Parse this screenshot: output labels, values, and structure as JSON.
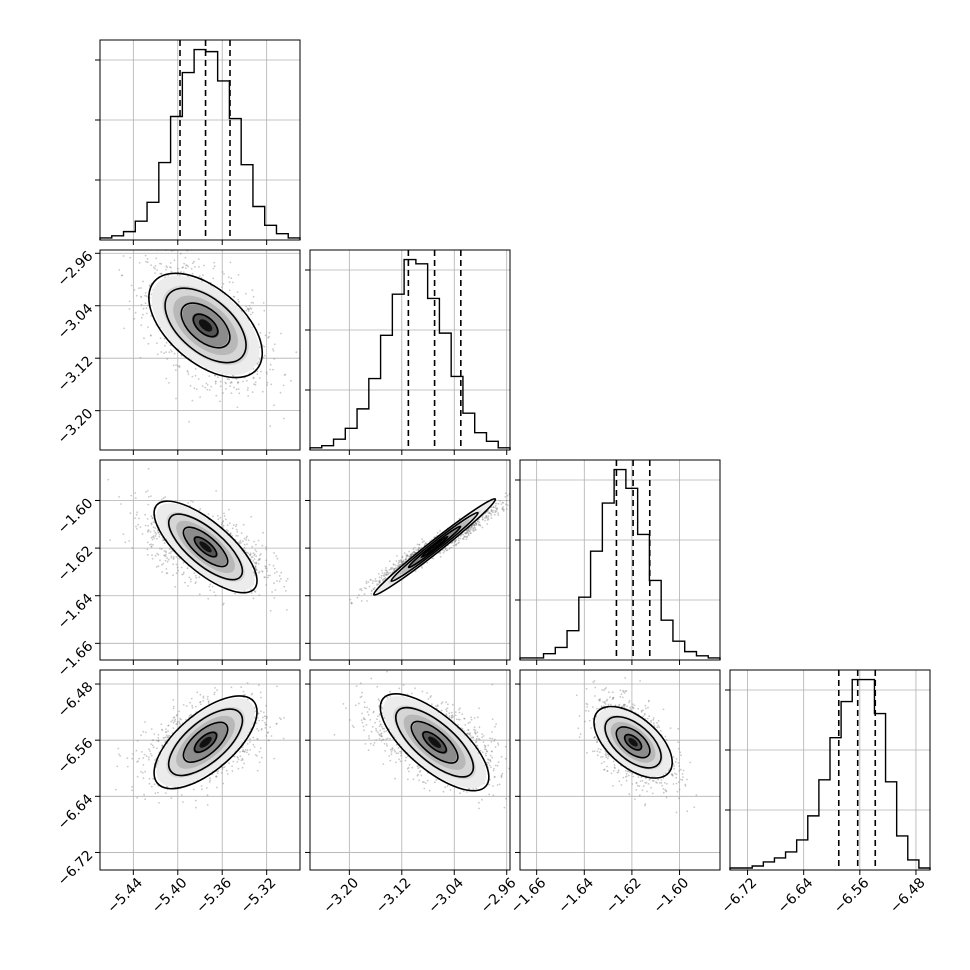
{
  "chart_data": {
    "type": "corner",
    "grid": true,
    "parameters": [
      {
        "ticks": [
          -5.44,
          -5.4,
          -5.36,
          -5.32
        ],
        "tick_labels": [
          "−5.44",
          "−5.40",
          "−5.36",
          "−5.32"
        ],
        "range": [
          -5.47,
          -5.29
        ],
        "quantiles": [
          -5.398,
          -5.375,
          -5.353
        ],
        "hist": [
          1,
          2,
          4,
          9,
          18,
          37,
          59,
          80,
          91,
          90,
          76,
          58,
          36,
          16,
          7,
          3,
          1
        ]
      },
      {
        "ticks": [
          -3.2,
          -3.12,
          -3.04,
          -2.96
        ],
        "tick_labels": [
          "−3.20",
          "−3.12",
          "−3.04",
          "−2.96"
        ],
        "range": [
          -3.26,
          -2.955
        ],
        "quantiles": [
          -3.11,
          -3.07,
          -3.03
        ],
        "hist": [
          1,
          2,
          5,
          10,
          19,
          33,
          53,
          72,
          88,
          86,
          70,
          54,
          34,
          17,
          8,
          4,
          1
        ]
      },
      {
        "ticks": [
          -1.66,
          -1.64,
          -1.62,
          -1.6
        ],
        "tick_labels": [
          "−1.66",
          "−1.64",
          "−1.62",
          "−1.60"
        ],
        "range": [
          -1.667,
          -1.583
        ],
        "quantiles": [
          -1.6265,
          -1.6195,
          -1.6125
        ],
        "hist": [
          1,
          1,
          3,
          6,
          14,
          30,
          52,
          75,
          91,
          82,
          60,
          38,
          19,
          9,
          4,
          2,
          1
        ]
      },
      {
        "ticks": [
          -6.72,
          -6.64,
          -6.56,
          -6.48
        ],
        "tick_labels": [
          "−6.72",
          "−6.64",
          "−6.56",
          "−6.48"
        ],
        "range": [
          -6.745,
          -6.46
        ],
        "quantiles": [
          -6.59,
          -6.563,
          -6.538
        ],
        "hist": [
          1,
          1,
          2,
          4,
          6,
          9,
          15,
          27,
          45,
          66,
          84,
          95,
          95,
          78,
          44,
          17,
          5,
          1
        ]
      }
    ],
    "pairs": [
      {
        "row": 1,
        "col": 0,
        "correlation": -0.5
      },
      {
        "row": 2,
        "col": 0,
        "correlation": -0.5
      },
      {
        "row": 2,
        "col": 1,
        "correlation": 0.97
      },
      {
        "row": 3,
        "col": 0,
        "correlation": 0.45
      },
      {
        "row": 3,
        "col": 1,
        "correlation": -0.5
      },
      {
        "row": 3,
        "col": 2,
        "correlation": -0.5
      }
    ]
  }
}
